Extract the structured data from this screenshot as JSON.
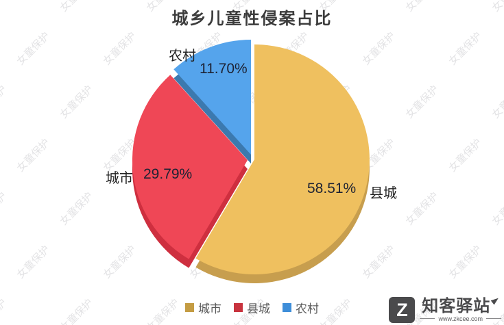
{
  "chart_data": {
    "type": "pie",
    "title": "城乡儿童性侵案占比",
    "start_angle_deg": 0,
    "direction": "clockwise",
    "style": "3d-exploded-pie",
    "slices": [
      {
        "label": "县城",
        "value": 58.51,
        "display": "58.51%",
        "color": "#EFC05F",
        "depth_color": "#C79E4E"
      },
      {
        "label": "城市",
        "value": 29.79,
        "display": "29.79%",
        "color": "#EF4756",
        "depth_color": "#CE2F3F"
      },
      {
        "label": "农村",
        "value": 11.7,
        "display": "11.70%",
        "color": "#55A4EC",
        "depth_color": "#3C79AE"
      }
    ],
    "legend": {
      "position": "bottom-center",
      "items": [
        {
          "label": "城市",
          "color": "#C49C43"
        },
        {
          "label": "县城",
          "color": "#C8333E"
        },
        {
          "label": "农村",
          "color": "#3E8ED9"
        }
      ]
    }
  },
  "watermark": {
    "text": "女童保护"
  },
  "logo": {
    "symbol": "Z",
    "name": "知客驿站",
    "url": "www.zkcee.com"
  }
}
